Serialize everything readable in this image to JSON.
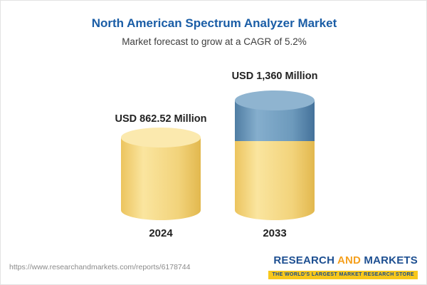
{
  "header": {
    "title": "North American Spectrum Analyzer Market",
    "subtitle": "Market forecast to grow at a CAGR of 5.2%"
  },
  "chart_data": {
    "type": "bar",
    "title": "North American Spectrum Analyzer Market",
    "subtitle": "Market forecast to grow at a CAGR of 5.2%",
    "categories": [
      "2024",
      "2033"
    ],
    "values": [
      862.52,
      1360
    ],
    "unit": "USD Million",
    "cagr_percent": 5.2,
    "bars": [
      {
        "category": "2024",
        "value": 862.52,
        "label": "USD 862.52 Million",
        "color": "#f2d37b"
      },
      {
        "category": "2033",
        "value": 1360,
        "label": "USD 1,360 Million",
        "base_color": "#f2d37b",
        "growth_color": "#6d9abc"
      }
    ],
    "layout": {
      "legend": "none",
      "grid": false,
      "bar_style": "cylinder"
    }
  },
  "footer": {
    "url": "https://www.researchandmarkets.com/reports/6178744",
    "logo": {
      "word1": "RESEARCH",
      "word2": "AND",
      "word3": "MARKETS",
      "tagline": "THE WORLD'S LARGEST MARKET RESEARCH STORE"
    }
  }
}
